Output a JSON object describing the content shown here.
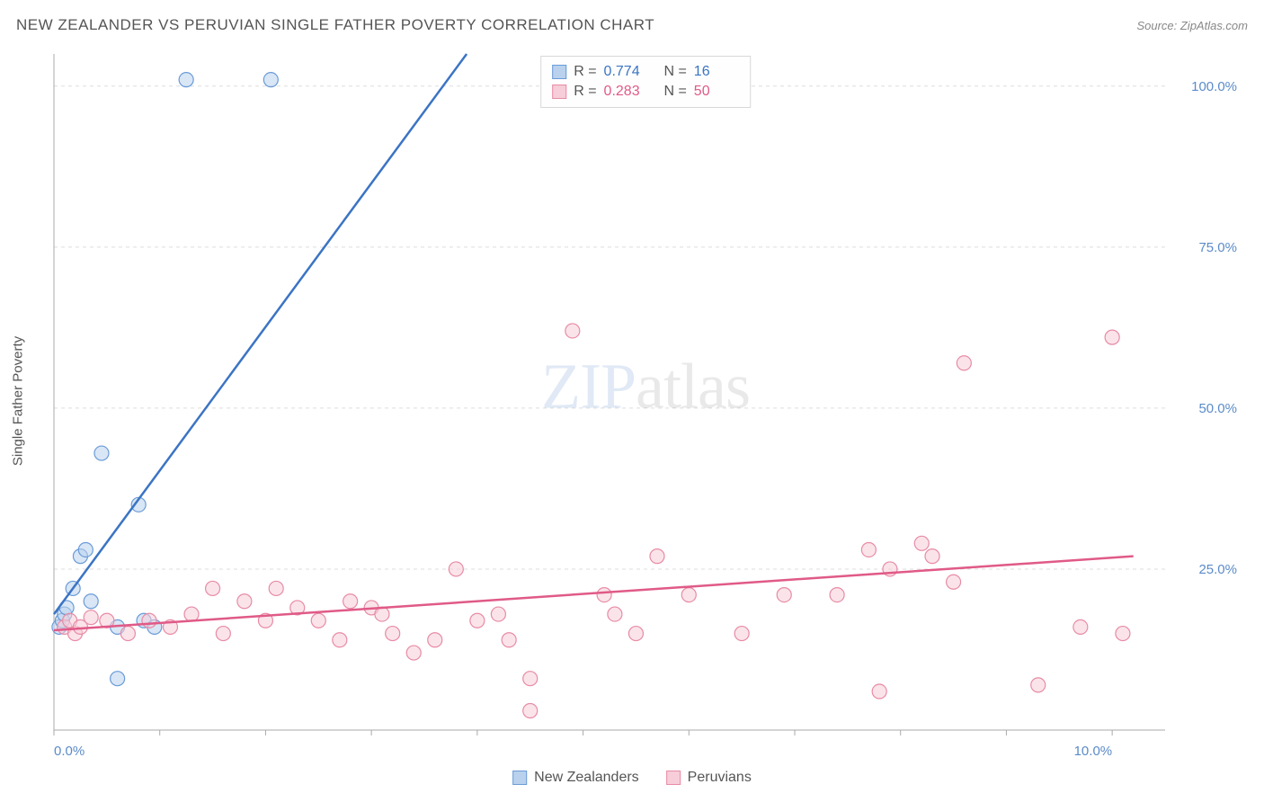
{
  "header": {
    "title": "NEW ZEALANDER VS PERUVIAN SINGLE FATHER POVERTY CORRELATION CHART",
    "source_prefix": "Source: ",
    "source_name": "ZipAtlas.com"
  },
  "watermark": {
    "part1": "ZIP",
    "part2": "atlas"
  },
  "chart": {
    "type": "scatter",
    "ylabel": "Single Father Poverty",
    "background_color": "#ffffff",
    "grid_color": "#dddddd",
    "axis_text_color": "#5b8bc9",
    "xlim": [
      0,
      10.5
    ],
    "ylim": [
      0,
      105
    ],
    "xticks": [
      0,
      1,
      2,
      3,
      4,
      5,
      6,
      7,
      8,
      9,
      10
    ],
    "yticks": [
      25,
      50,
      75,
      100
    ],
    "xtick_labels": {
      "0": "0.0%",
      "10": "10.0%"
    },
    "ytick_labels": {
      "25": "25.0%",
      "50": "50.0%",
      "75": "75.0%",
      "100": "100.0%"
    },
    "marker_radius": 8,
    "marker_opacity": 0.55,
    "series": [
      {
        "name": "New Zealanders",
        "color_fill": "#b9d1ed",
        "color_stroke": "#6a9bd8",
        "line_color": "#3b74c4",
        "line_width": 2.5,
        "trend": {
          "x1": 0,
          "y1": 18,
          "x2": 3.9,
          "y2": 105
        },
        "stats": {
          "R": "0.774",
          "N": "16"
        },
        "points": [
          [
            0.05,
            16
          ],
          [
            0.08,
            17
          ],
          [
            0.1,
            18
          ],
          [
            0.12,
            19
          ],
          [
            0.18,
            22
          ],
          [
            0.25,
            27
          ],
          [
            0.3,
            28
          ],
          [
            0.35,
            20
          ],
          [
            0.45,
            43
          ],
          [
            0.6,
            16
          ],
          [
            0.6,
            8
          ],
          [
            0.8,
            35
          ],
          [
            0.85,
            17
          ],
          [
            0.95,
            16
          ],
          [
            1.25,
            101
          ],
          [
            2.05,
            101
          ]
        ]
      },
      {
        "name": "Peruvians",
        "color_fill": "#f6cdd8",
        "color_stroke": "#e88ba5",
        "line_color": "#e05a87",
        "line_width": 2.5,
        "trend": {
          "x1": 0,
          "y1": 15.5,
          "x2": 10.2,
          "y2": 27
        },
        "stats": {
          "R": "0.283",
          "N": "50"
        },
        "points": [
          [
            0.1,
            16
          ],
          [
            0.15,
            17
          ],
          [
            0.2,
            15
          ],
          [
            0.25,
            16
          ],
          [
            0.35,
            17.5
          ],
          [
            0.5,
            17
          ],
          [
            0.7,
            15
          ],
          [
            0.9,
            17
          ],
          [
            1.1,
            16
          ],
          [
            1.3,
            18
          ],
          [
            1.5,
            22
          ],
          [
            1.6,
            15
          ],
          [
            1.8,
            20
          ],
          [
            2.0,
            17
          ],
          [
            2.1,
            22
          ],
          [
            2.3,
            19
          ],
          [
            2.5,
            17
          ],
          [
            2.7,
            14
          ],
          [
            2.8,
            20
          ],
          [
            3.0,
            19
          ],
          [
            3.1,
            18
          ],
          [
            3.2,
            15
          ],
          [
            3.4,
            12
          ],
          [
            3.6,
            14
          ],
          [
            3.8,
            25
          ],
          [
            4.0,
            17
          ],
          [
            4.2,
            18
          ],
          [
            4.3,
            14
          ],
          [
            4.5,
            8
          ],
          [
            4.5,
            3
          ],
          [
            4.9,
            62
          ],
          [
            5.2,
            21
          ],
          [
            5.3,
            18
          ],
          [
            5.5,
            15
          ],
          [
            5.7,
            27
          ],
          [
            6.0,
            21
          ],
          [
            6.5,
            15
          ],
          [
            6.9,
            21
          ],
          [
            7.4,
            21
          ],
          [
            7.7,
            28
          ],
          [
            7.8,
            6
          ],
          [
            7.9,
            25
          ],
          [
            8.2,
            29
          ],
          [
            8.3,
            27
          ],
          [
            8.5,
            23
          ],
          [
            8.6,
            57
          ],
          [
            9.3,
            7
          ],
          [
            9.7,
            16
          ],
          [
            10.0,
            61
          ],
          [
            10.1,
            15
          ]
        ]
      }
    ]
  },
  "legend": {
    "stats_prefix_R": "R = ",
    "stats_prefix_N": "N = "
  }
}
